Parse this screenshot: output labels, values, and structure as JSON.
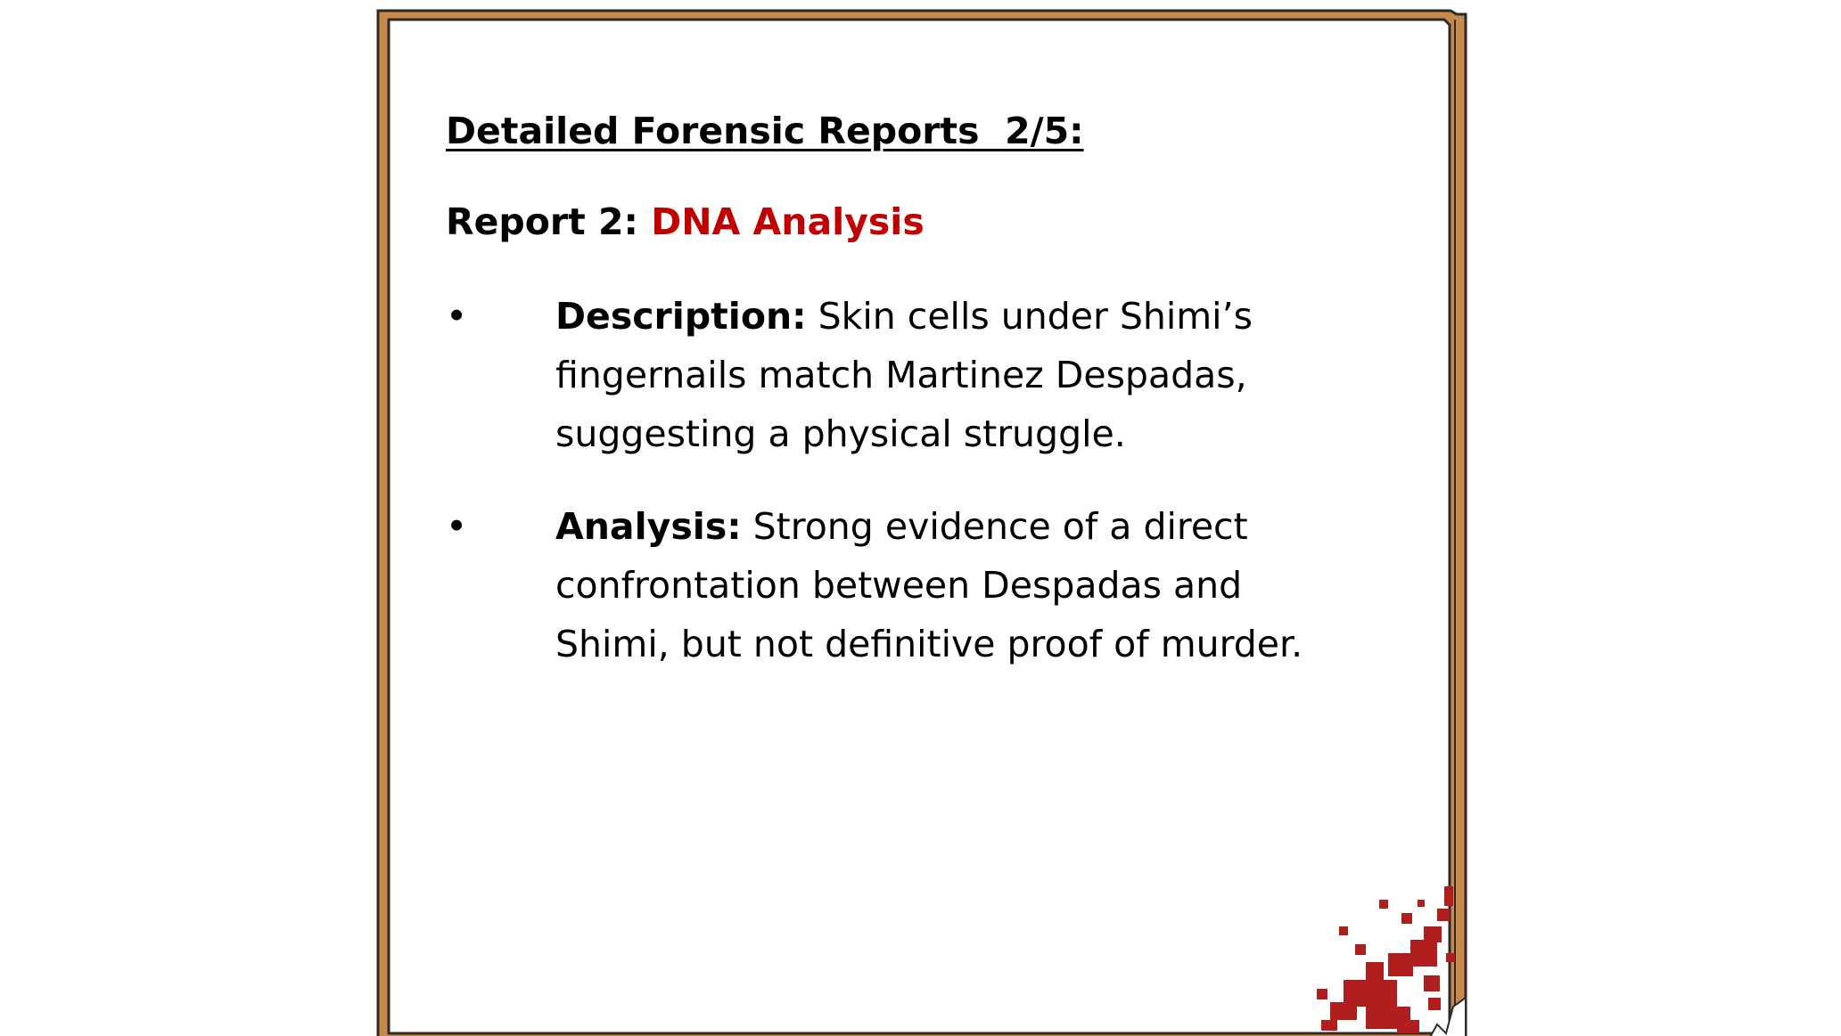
{
  "colors": {
    "frame_wood": "#c8894b",
    "frame_outline": "#2b2b2b",
    "paper": "#ffffff",
    "accent_red": "#c00000",
    "blood": "#b01e1e"
  },
  "report": {
    "heading": "Detailed Forensic Reports  2/5:",
    "title_prefix": "Report 2: ",
    "title_accent": "DNA Analysis",
    "bullets": [
      {
        "marker": "•",
        "term": "Description:",
        "text": " Skin cells under Shimi’s fingernails match Martinez Despadas, suggesting a physical struggle."
      },
      {
        "marker": "•",
        "term": "Analysis:",
        "text": " Strong evidence of a direct confrontation between Despadas and Shimi, but not definitive proof of murder."
      }
    ]
  },
  "decorations": {
    "frame": "wooden-frame",
    "stain": "blood-splatter-icon"
  }
}
